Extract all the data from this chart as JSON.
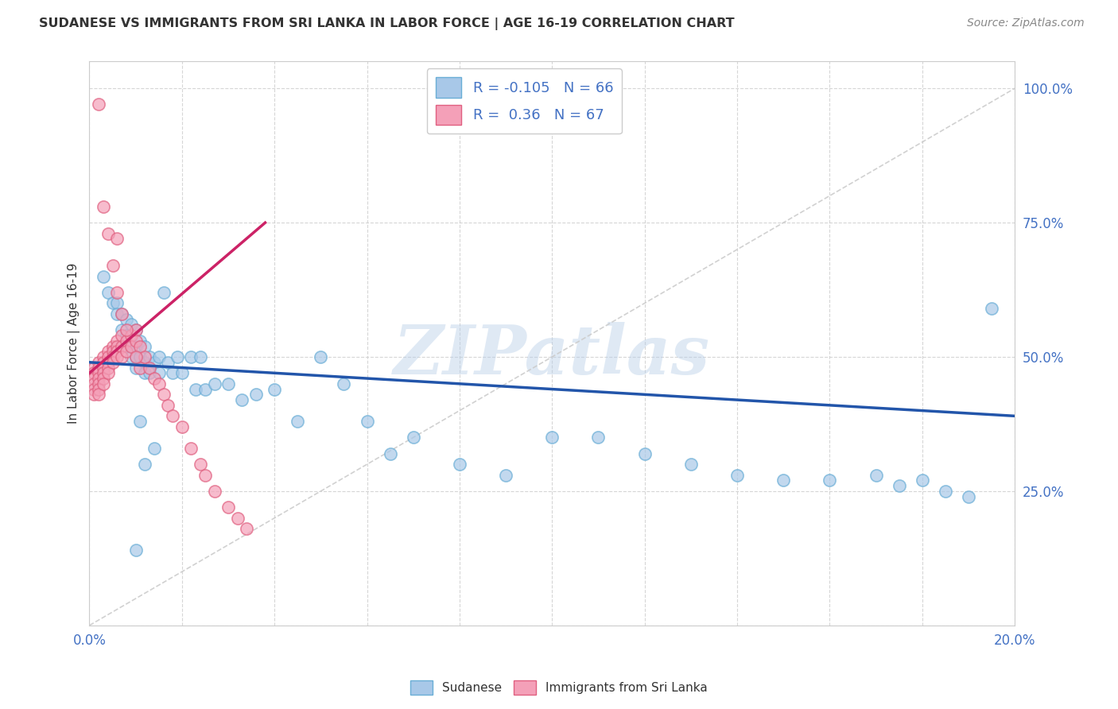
{
  "title": "SUDANESE VS IMMIGRANTS FROM SRI LANKA IN LABOR FORCE | AGE 16-19 CORRELATION CHART",
  "source": "Source: ZipAtlas.com",
  "ylabel": "In Labor Force | Age 16-19",
  "xlim": [
    0.0,
    0.2
  ],
  "ylim": [
    0.0,
    1.05
  ],
  "ytick_values": [
    0.0,
    0.25,
    0.5,
    0.75,
    1.0
  ],
  "watermark_text": "ZIPatlas",
  "blue_color": "#a8c8e8",
  "blue_edge_color": "#6aaed6",
  "pink_color": "#f4a0b8",
  "pink_edge_color": "#e06080",
  "blue_line_color": "#2255aa",
  "pink_line_color": "#cc2266",
  "diag_line_color": "#cccccc",
  "grid_color": "#cccccc",
  "background_color": "#ffffff",
  "title_color": "#333333",
  "source_color": "#888888",
  "axis_label_color": "#333333",
  "tick_color": "#4472c4",
  "blue_R": -0.105,
  "pink_R": 0.36,
  "blue_N": 66,
  "pink_N": 67,
  "blue_line_x0": 0.0,
  "blue_line_y0": 0.49,
  "blue_line_x1": 0.2,
  "blue_line_y1": 0.39,
  "pink_line_x0": 0.0,
  "pink_line_y0": 0.47,
  "pink_line_x1": 0.038,
  "pink_line_y1": 0.75,
  "blue_scatter_x": [
    0.003,
    0.004,
    0.005,
    0.006,
    0.006,
    0.007,
    0.007,
    0.008,
    0.008,
    0.008,
    0.009,
    0.009,
    0.009,
    0.01,
    0.01,
    0.01,
    0.01,
    0.011,
    0.011,
    0.012,
    0.012,
    0.012,
    0.013,
    0.013,
    0.014,
    0.015,
    0.015,
    0.016,
    0.017,
    0.018,
    0.019,
    0.02,
    0.022,
    0.023,
    0.024,
    0.025,
    0.027,
    0.03,
    0.033,
    0.036,
    0.04,
    0.045,
    0.05,
    0.055,
    0.06,
    0.065,
    0.07,
    0.08,
    0.09,
    0.1,
    0.11,
    0.12,
    0.13,
    0.14,
    0.15,
    0.16,
    0.17,
    0.175,
    0.18,
    0.185,
    0.19,
    0.195,
    0.01,
    0.011,
    0.012,
    0.014
  ],
  "blue_scatter_y": [
    0.65,
    0.62,
    0.6,
    0.6,
    0.58,
    0.58,
    0.55,
    0.57,
    0.54,
    0.52,
    0.56,
    0.52,
    0.5,
    0.55,
    0.52,
    0.5,
    0.48,
    0.53,
    0.5,
    0.52,
    0.49,
    0.47,
    0.5,
    0.47,
    0.49,
    0.5,
    0.47,
    0.62,
    0.49,
    0.47,
    0.5,
    0.47,
    0.5,
    0.44,
    0.5,
    0.44,
    0.45,
    0.45,
    0.42,
    0.43,
    0.44,
    0.38,
    0.5,
    0.45,
    0.38,
    0.32,
    0.35,
    0.3,
    0.28,
    0.35,
    0.35,
    0.32,
    0.3,
    0.28,
    0.27,
    0.27,
    0.28,
    0.26,
    0.27,
    0.25,
    0.24,
    0.59,
    0.14,
    0.38,
    0.3,
    0.33
  ],
  "pink_scatter_x": [
    0.001,
    0.001,
    0.001,
    0.001,
    0.001,
    0.001,
    0.002,
    0.002,
    0.002,
    0.002,
    0.002,
    0.002,
    0.002,
    0.003,
    0.003,
    0.003,
    0.003,
    0.003,
    0.003,
    0.004,
    0.004,
    0.004,
    0.004,
    0.004,
    0.005,
    0.005,
    0.005,
    0.005,
    0.006,
    0.006,
    0.006,
    0.006,
    0.007,
    0.007,
    0.007,
    0.008,
    0.008,
    0.009,
    0.009,
    0.01,
    0.01,
    0.011,
    0.011,
    0.012,
    0.013,
    0.014,
    0.015,
    0.016,
    0.017,
    0.018,
    0.02,
    0.022,
    0.024,
    0.025,
    0.027,
    0.03,
    0.032,
    0.034,
    0.002,
    0.003,
    0.004,
    0.005,
    0.006,
    0.006,
    0.007,
    0.008,
    0.01
  ],
  "pink_scatter_y": [
    0.48,
    0.47,
    0.46,
    0.45,
    0.44,
    0.43,
    0.49,
    0.48,
    0.47,
    0.46,
    0.45,
    0.44,
    0.43,
    0.5,
    0.49,
    0.48,
    0.47,
    0.46,
    0.45,
    0.51,
    0.5,
    0.49,
    0.48,
    0.47,
    0.52,
    0.51,
    0.5,
    0.49,
    0.53,
    0.52,
    0.51,
    0.5,
    0.54,
    0.52,
    0.5,
    0.53,
    0.51,
    0.54,
    0.52,
    0.55,
    0.53,
    0.52,
    0.48,
    0.5,
    0.48,
    0.46,
    0.45,
    0.43,
    0.41,
    0.39,
    0.37,
    0.33,
    0.3,
    0.28,
    0.25,
    0.22,
    0.2,
    0.18,
    0.97,
    0.78,
    0.73,
    0.67,
    0.72,
    0.62,
    0.58,
    0.55,
    0.5
  ]
}
